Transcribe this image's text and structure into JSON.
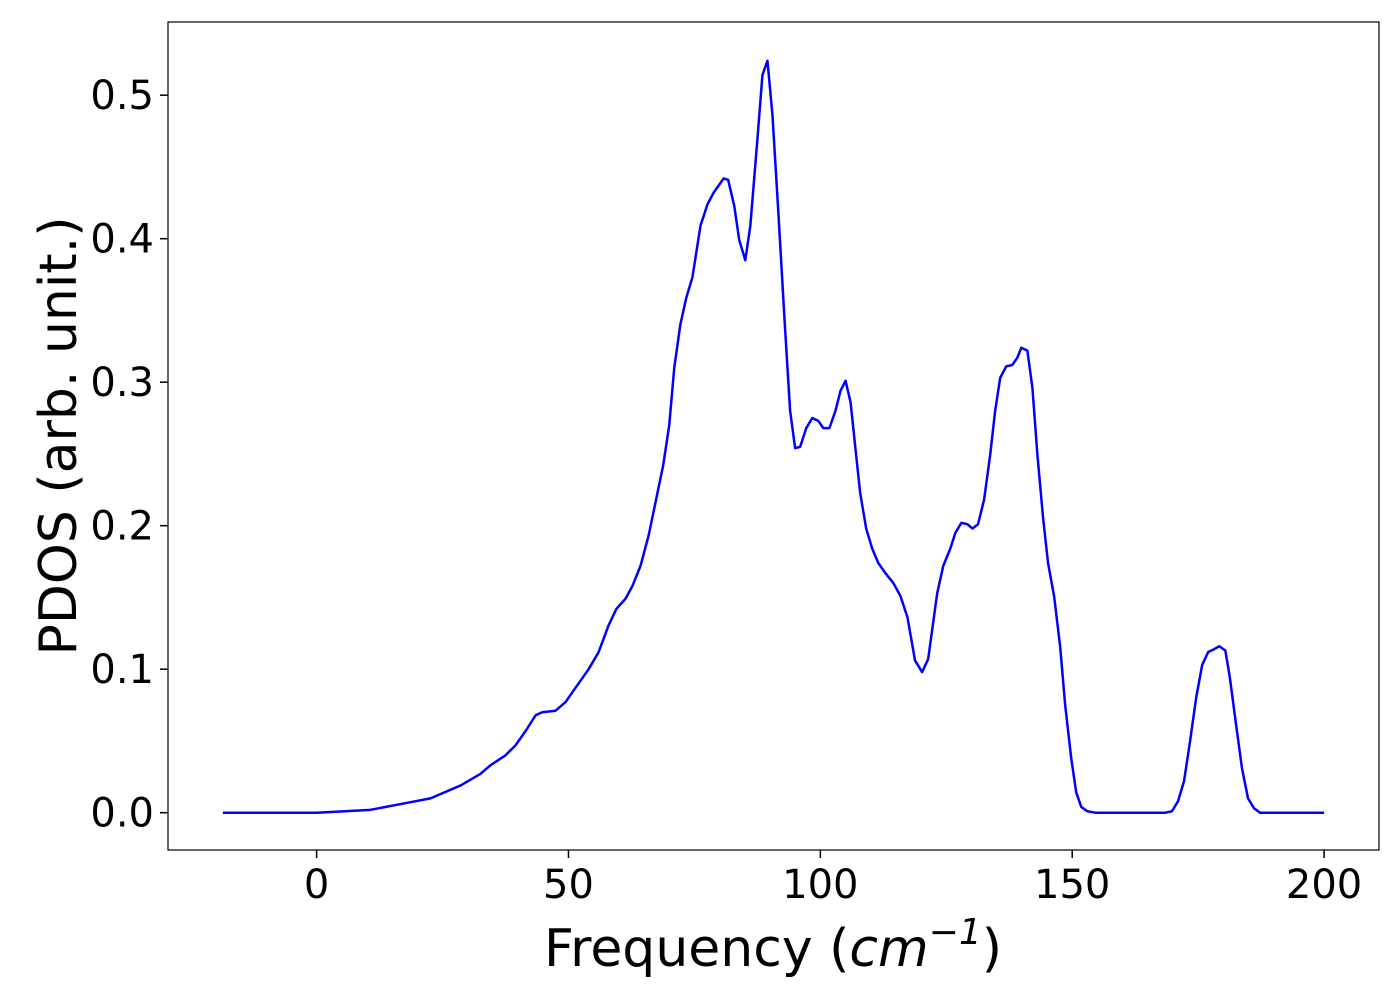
{
  "chart_data": {
    "type": "line",
    "xlabel": [
      "Frequency (",
      "cm",
      "−1",
      ")"
    ],
    "ylabel": "PDOS (arb. unit.)",
    "color": "#0000ff",
    "x": [
      -18.6,
      0,
      10.7,
      16.7,
      22.6,
      28.6,
      32.5,
      34.5,
      37.5,
      39.5,
      41.5,
      43.5,
      44.8,
      47.4,
      49.4,
      51.4,
      54.0,
      56.0,
      57.9,
      59.5,
      61.3,
      62.7,
      64.3,
      65.9,
      67.5,
      68.8,
      70.0,
      71.0,
      72.2,
      73.4,
      74.6,
      76.2,
      77.6,
      78.8,
      80.2,
      80.8,
      81.7,
      82.9,
      83.9,
      85.1,
      86.1,
      87.5,
      88.5,
      89.5,
      90.5,
      91.7,
      92.9,
      94.0,
      95.0,
      96.0,
      97.2,
      98.4,
      99.6,
      100.6,
      101.8,
      103.0,
      104.0,
      105.0,
      106.0,
      106.9,
      107.9,
      109.1,
      110.3,
      111.5,
      112.9,
      114.5,
      115.9,
      117.3,
      118.8,
      120.2,
      121.4,
      123.2,
      124.4,
      125.8,
      126.8,
      128.0,
      129.2,
      130.2,
      131.3,
      132.5,
      133.7,
      134.7,
      135.7,
      136.9,
      138.1,
      139.1,
      139.9,
      141.1,
      142.1,
      143.1,
      144.2,
      145.2,
      146.4,
      147.6,
      148.6,
      149.8,
      150.8,
      151.8,
      153.0,
      154.6,
      168.5,
      169.8,
      171.0,
      172.2,
      173.4,
      174.6,
      175.8,
      177.0,
      178.2,
      179.2,
      180.4,
      181.3,
      182.5,
      183.7,
      184.9,
      186.1,
      187.3,
      200
    ],
    "values": [
      0,
      0,
      0.002,
      0.006,
      0.01,
      0.019,
      0.027,
      0.033,
      0.04,
      0.047,
      0.057,
      0.068,
      0.07,
      0.071,
      0.077,
      0.087,
      0.1,
      0.112,
      0.13,
      0.142,
      0.149,
      0.158,
      0.172,
      0.193,
      0.22,
      0.242,
      0.27,
      0.31,
      0.34,
      0.359,
      0.373,
      0.409,
      0.424,
      0.432,
      0.439,
      0.442,
      0.441,
      0.423,
      0.399,
      0.385,
      0.409,
      0.469,
      0.514,
      0.524,
      0.486,
      0.416,
      0.343,
      0.28,
      0.254,
      0.255,
      0.268,
      0.275,
      0.273,
      0.268,
      0.268,
      0.28,
      0.294,
      0.301,
      0.286,
      0.256,
      0.223,
      0.198,
      0.184,
      0.174,
      0.167,
      0.16,
      0.151,
      0.136,
      0.106,
      0.098,
      0.107,
      0.153,
      0.172,
      0.184,
      0.195,
      0.202,
      0.201,
      0.198,
      0.201,
      0.218,
      0.249,
      0.28,
      0.303,
      0.311,
      0.312,
      0.317,
      0.324,
      0.322,
      0.296,
      0.249,
      0.206,
      0.174,
      0.151,
      0.116,
      0.075,
      0.038,
      0.014,
      0.004,
      0.001,
      0,
      0,
      0.001,
      0.008,
      0.022,
      0.05,
      0.08,
      0.103,
      0.112,
      0.114,
      0.116,
      0.113,
      0.094,
      0.062,
      0.031,
      0.01,
      0.003,
      0,
      0
    ],
    "xlim": [
      -29.5,
      210.9
    ],
    "ylim": [
      -0.026,
      0.551
    ],
    "xticks": [
      0,
      50,
      100,
      150,
      200
    ],
    "yticks": [
      {
        "value": 0,
        "label": "0.0"
      },
      0.1,
      0.2,
      0.3,
      0.4,
      0.5
    ]
  }
}
